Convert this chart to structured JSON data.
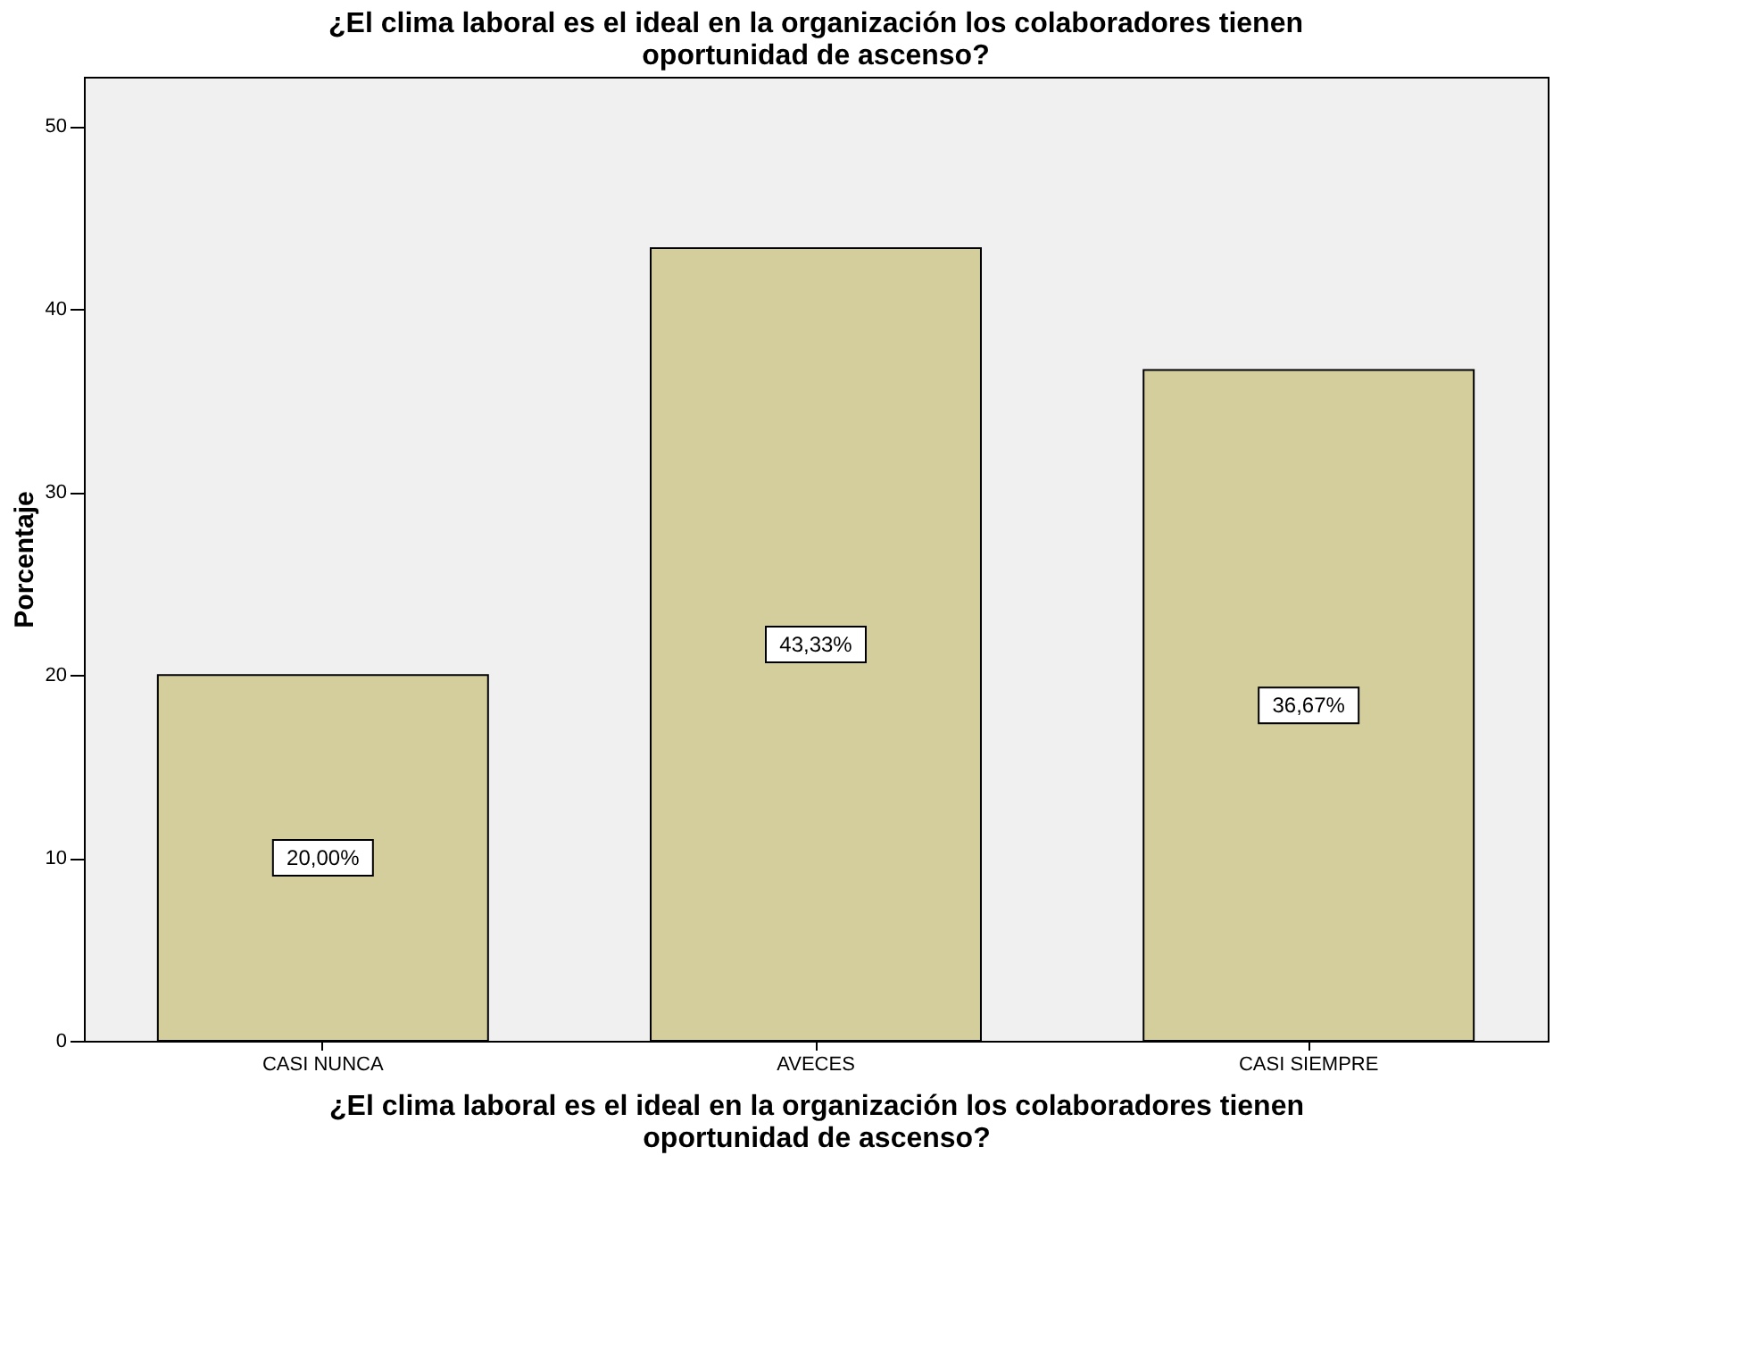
{
  "chart_data": {
    "type": "bar",
    "title": "¿El clima laboral es el ideal en la organización los colaboradores tienen oportunidad de ascenso?",
    "xlabel": "¿El clima laboral es el ideal en la organización los colaboradores tienen oportunidad de ascenso?",
    "ylabel": "Porcentaje",
    "categories": [
      "CASI NUNCA",
      "AVECES",
      "CASI SIEMPRE"
    ],
    "values": [
      20.0,
      43.33,
      36.67
    ],
    "value_labels": [
      "20,00%",
      "43,33%",
      "36,67%"
    ],
    "color": "#d3ce9c",
    "ylim": [
      0,
      52.7
    ],
    "yticks": [
      0,
      10,
      20,
      30,
      40,
      50
    ],
    "grid": false
  }
}
